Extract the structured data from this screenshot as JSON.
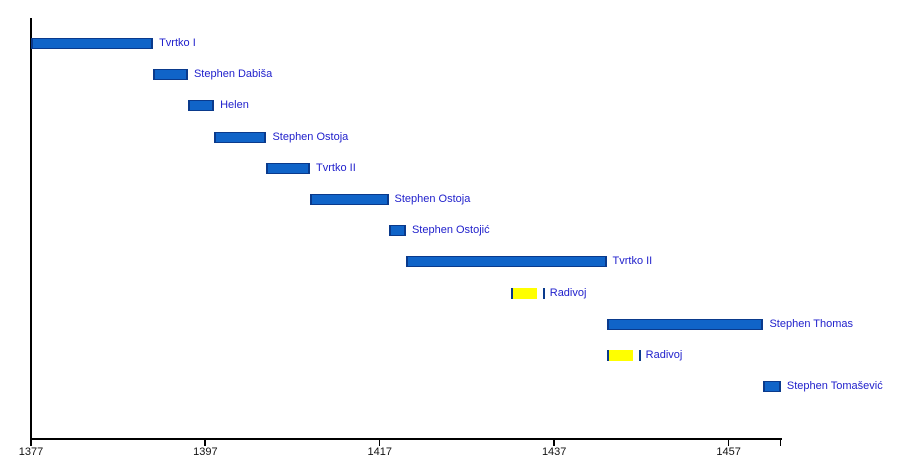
{
  "chart_data": {
    "type": "timeline",
    "x_axis": {
      "min": 1377,
      "max": 1463,
      "ticks": [
        1377,
        1397,
        1417,
        1437,
        1457
      ],
      "end_tick": 1463,
      "grid": false,
      "tick_labels": [
        "1377",
        "1397",
        "1417",
        "1437",
        "1457"
      ]
    },
    "bars": [
      {
        "label": "Tvrtko I",
        "start": 1377,
        "end": 1391,
        "category": "monarch"
      },
      {
        "label": "Stephen Dabiša",
        "start": 1391,
        "end": 1395,
        "category": "monarch"
      },
      {
        "label": "Helen",
        "start": 1395,
        "end": 1398,
        "category": "monarch"
      },
      {
        "label": "Stephen Ostoja",
        "start": 1398,
        "end": 1404,
        "category": "monarch"
      },
      {
        "label": "Tvrtko II",
        "start": 1404,
        "end": 1409,
        "category": "monarch"
      },
      {
        "label": "Stephen Ostoja",
        "start": 1409,
        "end": 1418,
        "category": "monarch"
      },
      {
        "label": "Stephen Ostojić",
        "start": 1418,
        "end": 1420,
        "category": "monarch"
      },
      {
        "label": "Tvrtko II",
        "start": 1420,
        "end": 1443,
        "category": "monarch"
      },
      {
        "label": "Radivoj",
        "start": 1432,
        "end": 1435,
        "category": "claimant"
      },
      {
        "label": "Stephen Thomas",
        "start": 1443,
        "end": 1461,
        "category": "monarch"
      },
      {
        "label": "Radivoj",
        "start": 1443,
        "end": 1446,
        "category": "claimant"
      },
      {
        "label": "Stephen Tomašević",
        "start": 1461,
        "end": 1463,
        "category": "monarch"
      }
    ],
    "colors": {
      "monarch_bar_fill": "#1064C8",
      "claimant_bar_fill": "#FFFF00",
      "bar_border": "#0A3A8C",
      "label_text": "#2121CC",
      "axis_line": "#000000",
      "tick_label_text": "#111111",
      "background": "#FFFFFF"
    }
  }
}
